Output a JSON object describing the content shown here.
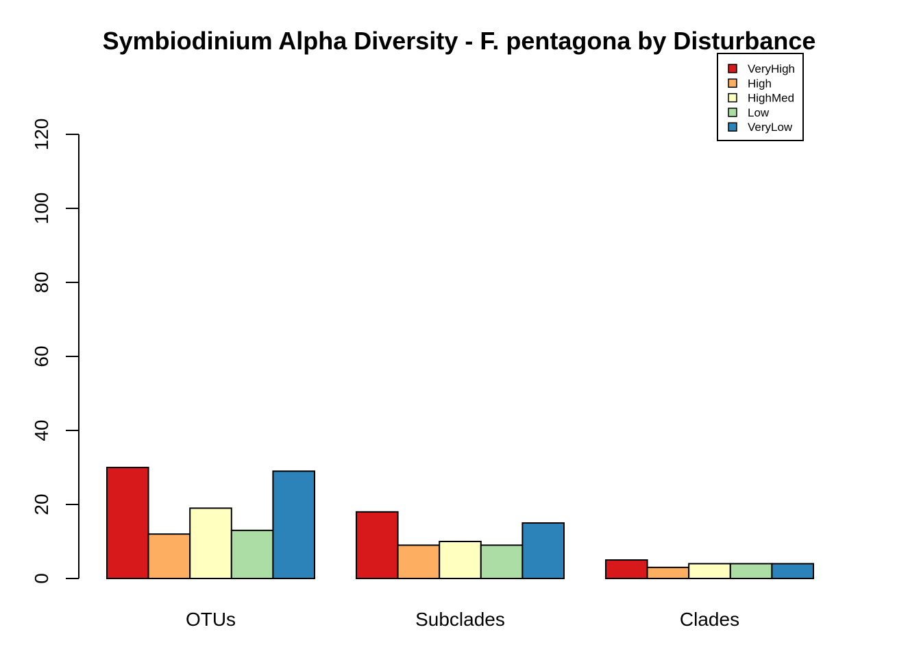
{
  "chart_data": {
    "type": "bar",
    "title": "Symbiodinium Alpha Diversity - F. pentagona by Disturbance",
    "xlabel": "",
    "ylabel": "",
    "categories": [
      "OTUs",
      "Subclades",
      "Clades"
    ],
    "ylim": [
      0,
      120
    ],
    "yticks": [
      "0",
      "20",
      "40",
      "60",
      "80",
      "100",
      "120"
    ],
    "grid": false,
    "legend_position": "top-right",
    "series": [
      {
        "name": "VeryHigh",
        "color": "#d7191c",
        "values": [
          30,
          18,
          5
        ]
      },
      {
        "name": "High",
        "color": "#fdae61",
        "values": [
          12,
          9,
          3
        ]
      },
      {
        "name": "HighMed",
        "color": "#ffffbf",
        "values": [
          19,
          10,
          4
        ]
      },
      {
        "name": "Low",
        "color": "#abdda4",
        "values": [
          13,
          9,
          4
        ]
      },
      {
        "name": "VeryLow",
        "color": "#2b83ba",
        "values": [
          29,
          15,
          4
        ]
      }
    ]
  }
}
